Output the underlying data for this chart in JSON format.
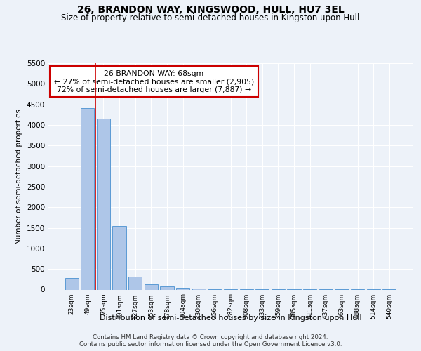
{
  "title": "26, BRANDON WAY, KINGSWOOD, HULL, HU7 3EL",
  "subtitle": "Size of property relative to semi-detached houses in Kingston upon Hull",
  "xlabel": "Distribution of semi-detached houses by size in Kingston upon Hull",
  "ylabel": "Number of semi-detached properties",
  "footer_line1": "Contains HM Land Registry data © Crown copyright and database right 2024.",
  "footer_line2": "Contains public sector information licensed under the Open Government Licence v3.0.",
  "bar_labels": [
    "23sqm",
    "49sqm",
    "75sqm",
    "101sqm",
    "127sqm",
    "153sqm",
    "178sqm",
    "204sqm",
    "230sqm",
    "256sqm",
    "282sqm",
    "308sqm",
    "333sqm",
    "359sqm",
    "385sqm",
    "411sqm",
    "437sqm",
    "463sqm",
    "488sqm",
    "514sqm",
    "540sqm"
  ],
  "bar_values": [
    280,
    4400,
    4150,
    1540,
    320,
    135,
    80,
    45,
    25,
    15,
    10,
    8,
    5,
    4,
    3,
    3,
    2,
    2,
    2,
    2,
    1
  ],
  "bar_color": "#aec6e8",
  "bar_edge_color": "#5b9bd5",
  "ylim": [
    0,
    5500
  ],
  "yticks": [
    0,
    500,
    1000,
    1500,
    2000,
    2500,
    3000,
    3500,
    4000,
    4500,
    5000,
    5500
  ],
  "property_label": "26 BRANDON WAY: 68sqm",
  "pct_smaller": 27,
  "pct_larger": 72,
  "n_smaller": "2,905",
  "n_larger": "7,887",
  "vline_x": 1.5,
  "annotation_box_color": "#ffffff",
  "annotation_box_edge": "#cc0000",
  "vline_color": "#cc0000",
  "background_color": "#edf2f9",
  "title_fontsize": 10,
  "subtitle_fontsize": 8.5,
  "annot_fontsize": 7.8
}
